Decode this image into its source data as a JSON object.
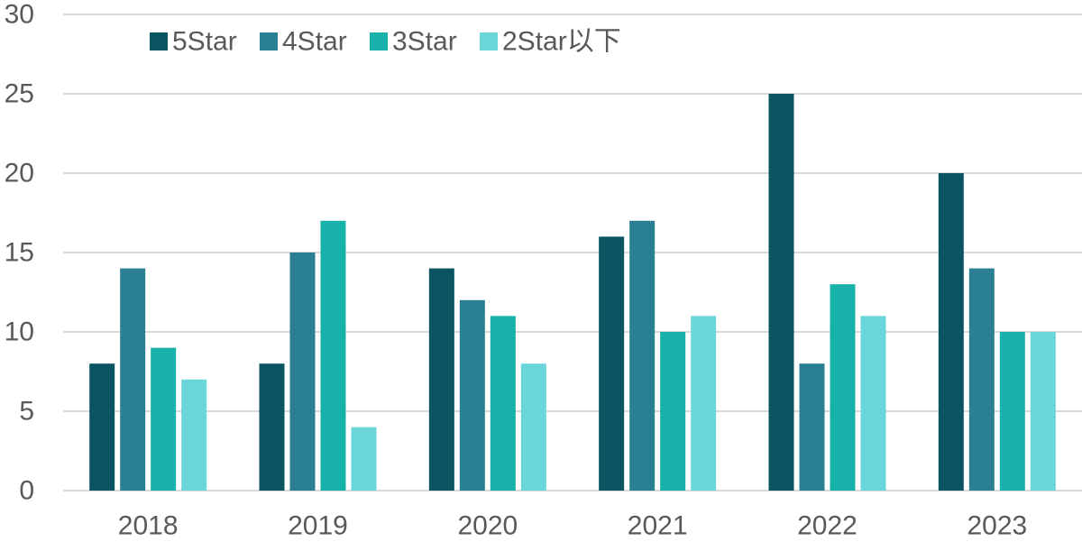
{
  "chart_data": {
    "type": "bar",
    "title": "",
    "xlabel": "",
    "ylabel": "",
    "ylim": [
      0,
      30
    ],
    "yticks": [
      0,
      5,
      10,
      15,
      20,
      25,
      30
    ],
    "grid": true,
    "legend_position": "top-left",
    "categories": [
      "2018",
      "2019",
      "2020",
      "2021",
      "2022",
      "2023"
    ],
    "series": [
      {
        "name": "5Star",
        "color": "#0b5563",
        "values": [
          8,
          8,
          14,
          16,
          25,
          20
        ]
      },
      {
        "name": "4Star",
        "color": "#2a7f92",
        "values": [
          14,
          15,
          12,
          17,
          8,
          14
        ]
      },
      {
        "name": "3Star",
        "color": "#19b2ab",
        "values": [
          9,
          17,
          11,
          10,
          13,
          10
        ]
      },
      {
        "name": "2Star以下",
        "color": "#6bd6da",
        "values": [
          7,
          4,
          8,
          11,
          11,
          10
        ]
      }
    ]
  }
}
